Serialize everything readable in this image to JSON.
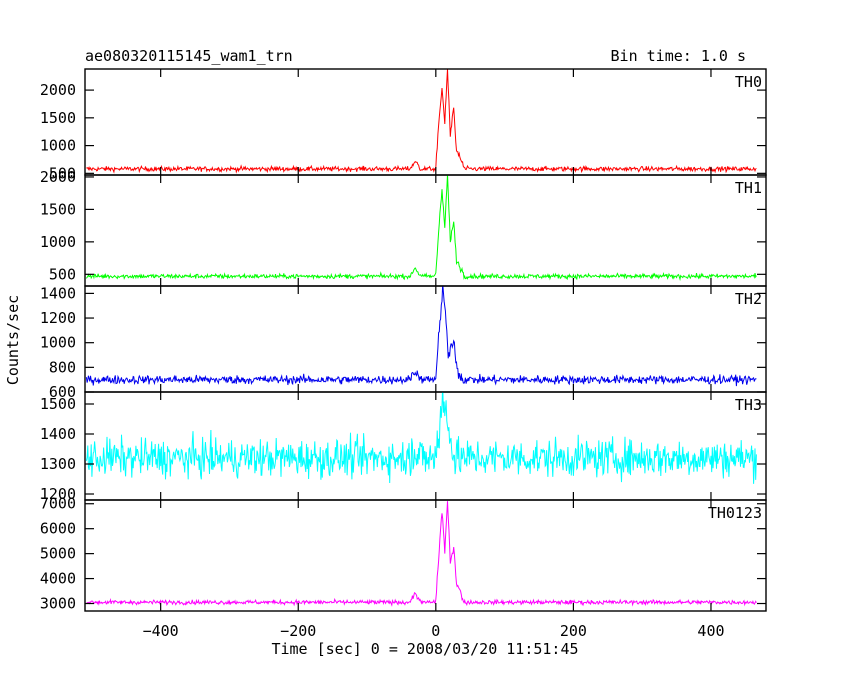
{
  "header": {
    "title": "ae080320115145_wam1_trn",
    "bin_time": "Bin time: 1.0 s"
  },
  "chart_data": {
    "type": "line",
    "xlabel": "Time [sec] 0 = 2008/03/20 11:51:45",
    "ylabel": "Counts/sec",
    "xlim": [
      -510,
      480
    ],
    "x_ticks": [
      -400,
      -200,
      0,
      200,
      400
    ],
    "x_tick_labels": [
      "−400",
      "−200",
      "0",
      "200",
      "400"
    ],
    "panels": [
      {
        "name": "TH0",
        "color": "#ff0000",
        "ylim": [
          470,
          2380
        ],
        "y_ticks": [
          500,
          1000,
          1500,
          2000
        ],
        "y_tick_labels": [
          "500",
          "1000",
          "1500",
          "2000"
        ],
        "baseline": 580,
        "noise": 30,
        "precursor_peak": 720,
        "burst": [
          [
            0,
            600
          ],
          [
            5,
            1500
          ],
          [
            9,
            2050
          ],
          [
            13,
            1400
          ],
          [
            17,
            2380
          ],
          [
            21,
            1200
          ],
          [
            26,
            1650
          ],
          [
            30,
            900
          ],
          [
            40,
            650
          ]
        ]
      },
      {
        "name": "TH1",
        "color": "#00ff00",
        "ylim": [
          320,
          2030
        ],
        "y_ticks": [
          500,
          1000,
          1500,
          2000
        ],
        "y_tick_labels": [
          "500",
          "1000",
          "1500",
          "2000"
        ],
        "baseline": 470,
        "noise": 25,
        "precursor_peak": 600,
        "burst": [
          [
            0,
            500
          ],
          [
            5,
            1300
          ],
          [
            9,
            1820
          ],
          [
            13,
            1200
          ],
          [
            17,
            2030
          ],
          [
            21,
            1000
          ],
          [
            26,
            1300
          ],
          [
            30,
            700
          ],
          [
            40,
            520
          ]
        ]
      },
      {
        "name": "TH2",
        "color": "#0000ee",
        "ylim": [
          600,
          1460
        ],
        "y_ticks": [
          600,
          800,
          1000,
          1200,
          1400
        ],
        "y_tick_labels": [
          "600",
          "800",
          "1000",
          "1200",
          "1400"
        ],
        "baseline": 700,
        "noise": 25,
        "precursor_peak": 780,
        "burst": [
          [
            0,
            720
          ],
          [
            5,
            1100
          ],
          [
            10,
            1440
          ],
          [
            14,
            1250
          ],
          [
            18,
            900
          ],
          [
            26,
            1000
          ],
          [
            32,
            760
          ],
          [
            40,
            710
          ]
        ]
      },
      {
        "name": "TH3",
        "color": "#00ffff",
        "ylim": [
          1180,
          1540
        ],
        "y_ticks": [
          1200,
          1300,
          1400,
          1500
        ],
        "y_tick_labels": [
          "1200",
          "1300",
          "1400",
          "1500"
        ],
        "baseline": 1320,
        "noise": 45,
        "precursor_peak": 1350,
        "burst": [
          [
            0,
            1330
          ],
          [
            8,
            1480
          ],
          [
            12,
            1540
          ],
          [
            18,
            1380
          ],
          [
            30,
            1330
          ]
        ]
      },
      {
        "name": "TH0123",
        "color": "#ff00ff",
        "ylim": [
          2700,
          7150
        ],
        "y_ticks": [
          3000,
          4000,
          5000,
          6000,
          7000
        ],
        "y_tick_labels": [
          "3000",
          "4000",
          "5000",
          "6000",
          "7000"
        ],
        "baseline": 3050,
        "noise": 60,
        "precursor_peak": 3400,
        "burst": [
          [
            0,
            3100
          ],
          [
            5,
            5200
          ],
          [
            9,
            6700
          ],
          [
            13,
            5100
          ],
          [
            17,
            7100
          ],
          [
            21,
            4600
          ],
          [
            26,
            5300
          ],
          [
            30,
            3800
          ],
          [
            40,
            3150
          ]
        ]
      }
    ]
  }
}
